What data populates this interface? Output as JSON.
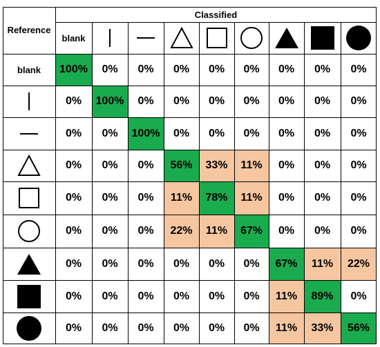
{
  "header": {
    "reference_label": "Reference",
    "classified_label": "Classified"
  },
  "classes": [
    {
      "label": "blank",
      "icon": "blank-text"
    },
    {
      "label": "",
      "icon": "vertical-line-icon"
    },
    {
      "label": "",
      "icon": "horizontal-line-icon"
    },
    {
      "label": "",
      "icon": "triangle-outline-icon"
    },
    {
      "label": "",
      "icon": "square-outline-icon"
    },
    {
      "label": "",
      "icon": "circle-outline-icon"
    },
    {
      "label": "",
      "icon": "triangle-filled-icon"
    },
    {
      "label": "",
      "icon": "square-filled-icon"
    },
    {
      "label": "",
      "icon": "circle-filled-icon"
    }
  ],
  "colors": {
    "correct": "#1aab4f",
    "confusion": "#f6c6a0",
    "none": "#ffffff",
    "border": "#000000"
  },
  "chart_data": {
    "type": "heatmap",
    "title": "",
    "xlabel": "Classified",
    "ylabel": "Reference",
    "categories": [
      "blank",
      "vertical line",
      "horizontal line",
      "triangle outline",
      "square outline",
      "circle outline",
      "triangle filled",
      "square filled",
      "circle filled"
    ],
    "rows": [
      [
        "100%",
        "0%",
        "0%",
        "0%",
        "0%",
        "0%",
        "0%",
        "0%",
        "0%"
      ],
      [
        "0%",
        "100%",
        "0%",
        "0%",
        "0%",
        "0%",
        "0%",
        "0%",
        "0%"
      ],
      [
        "0%",
        "0%",
        "100%",
        "0%",
        "0%",
        "0%",
        "0%",
        "0%",
        "0%"
      ],
      [
        "0%",
        "0%",
        "0%",
        "56%",
        "33%",
        "11%",
        "0%",
        "0%",
        "0%"
      ],
      [
        "0%",
        "0%",
        "0%",
        "11%",
        "78%",
        "11%",
        "0%",
        "0%",
        "0%"
      ],
      [
        "0%",
        "0%",
        "0%",
        "22%",
        "11%",
        "67%",
        "0%",
        "0%",
        "0%"
      ],
      [
        "0%",
        "0%",
        "0%",
        "0%",
        "0%",
        "0%",
        "67%",
        "11%",
        "22%"
      ],
      [
        "0%",
        "0%",
        "0%",
        "0%",
        "0%",
        "0%",
        "11%",
        "89%",
        "0%"
      ],
      [
        "0%",
        "0%",
        "0%",
        "0%",
        "0%",
        "0%",
        "11%",
        "33%",
        "56%"
      ]
    ]
  }
}
